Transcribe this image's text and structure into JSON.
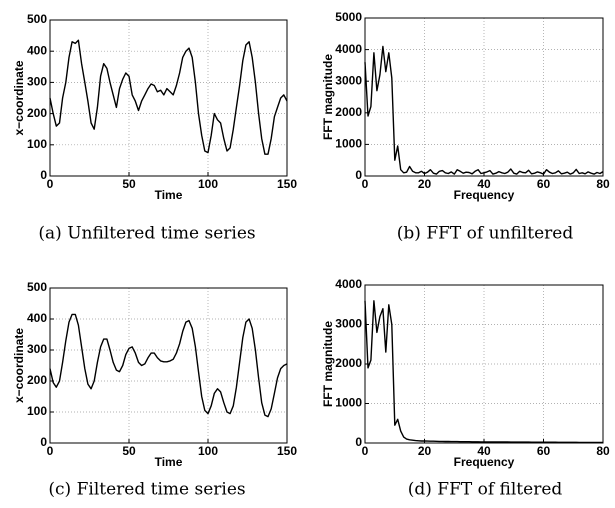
{
  "chart_data": [
    {
      "type": "line",
      "caption": "(a) Unfiltered time series",
      "xlabel": "Time",
      "ylabel": "x−coordinate",
      "xlim": [
        0,
        150
      ],
      "ylim": [
        0,
        500
      ],
      "xticks": [
        0,
        50,
        100,
        150
      ],
      "yticks": [
        0,
        100,
        200,
        300,
        400,
        500
      ],
      "grid": true,
      "series": [
        {
          "color": "#000000",
          "x": [
            0,
            2,
            4,
            6,
            8,
            10,
            12,
            14,
            16,
            18,
            20,
            22,
            24,
            26,
            28,
            30,
            32,
            34,
            36,
            38,
            40,
            42,
            44,
            46,
            48,
            50,
            52,
            54,
            56,
            58,
            60,
            62,
            64,
            66,
            68,
            70,
            72,
            74,
            76,
            78,
            80,
            82,
            84,
            86,
            88,
            90,
            92,
            94,
            96,
            98,
            100,
            102,
            104,
            106,
            108,
            110,
            112,
            114,
            116,
            118,
            120,
            122,
            124,
            126,
            128,
            130,
            132,
            134,
            136,
            138,
            140,
            142,
            144,
            146,
            148,
            150
          ],
          "values": [
            250,
            200,
            160,
            170,
            250,
            300,
            380,
            430,
            425,
            435,
            360,
            300,
            240,
            170,
            150,
            220,
            320,
            360,
            345,
            300,
            260,
            220,
            280,
            310,
            330,
            320,
            260,
            240,
            210,
            240,
            260,
            280,
            295,
            290,
            270,
            275,
            260,
            280,
            270,
            260,
            290,
            330,
            380,
            400,
            410,
            380,
            300,
            200,
            130,
            80,
            75,
            130,
            200,
            180,
            170,
            120,
            80,
            90,
            150,
            220,
            290,
            370,
            420,
            430,
            380,
            300,
            200,
            120,
            70,
            70,
            120,
            190,
            220,
            250,
            260,
            240
          ]
        }
      ]
    },
    {
      "type": "line",
      "caption": "(b) FFT of unfiltered",
      "xlabel": "Frequency",
      "ylabel": "FFT magnitude",
      "xlim": [
        0,
        80
      ],
      "ylim": [
        0,
        5000
      ],
      "xticks": [
        0,
        20,
        40,
        60,
        80
      ],
      "yticks": [
        0,
        1000,
        2000,
        3000,
        4000,
        5000
      ],
      "grid": true,
      "series": [
        {
          "color": "#000000",
          "x": [
            0,
            1,
            2,
            3,
            4,
            5,
            6,
            7,
            8,
            9,
            10,
            11,
            12,
            13,
            14,
            15,
            16,
            17,
            18,
            19,
            20,
            21,
            22,
            23,
            24,
            25,
            26,
            27,
            28,
            29,
            30,
            31,
            32,
            33,
            34,
            35,
            36,
            37,
            38,
            39,
            40,
            41,
            42,
            43,
            44,
            45,
            46,
            47,
            48,
            49,
            50,
            51,
            52,
            53,
            54,
            55,
            56,
            57,
            58,
            59,
            60,
            61,
            62,
            63,
            64,
            65,
            66,
            67,
            68,
            69,
            70,
            71,
            72,
            73,
            74,
            75,
            76,
            77,
            78,
            79,
            80
          ],
          "values": [
            3600,
            1900,
            2200,
            3900,
            2700,
            3200,
            4100,
            3300,
            3900,
            3100,
            500,
            950,
            200,
            100,
            120,
            300,
            150,
            100,
            100,
            150,
            80,
            120,
            200,
            90,
            60,
            150,
            170,
            100,
            80,
            130,
            60,
            200,
            150,
            90,
            120,
            110,
            70,
            150,
            200,
            80,
            100,
            130,
            170,
            60,
            90,
            140,
            100,
            80,
            120,
            220,
            90,
            60,
            150,
            110,
            100,
            180,
            70,
            90,
            130,
            100,
            60,
            200,
            120,
            80,
            100,
            160,
            70,
            90,
            120,
            60,
            100,
            210,
            80,
            100,
            70,
            130,
            90,
            60,
            110,
            80,
            140
          ]
        }
      ]
    },
    {
      "type": "line",
      "caption": "(c) Filtered time series",
      "xlabel": "Time",
      "ylabel": "x−coordinate",
      "xlim": [
        0,
        150
      ],
      "ylim": [
        0,
        500
      ],
      "xticks": [
        0,
        50,
        100,
        150
      ],
      "yticks": [
        0,
        100,
        200,
        300,
        400,
        500
      ],
      "grid": true,
      "series": [
        {
          "color": "#000000",
          "x": [
            0,
            2,
            4,
            6,
            8,
            10,
            12,
            14,
            16,
            18,
            20,
            22,
            24,
            26,
            28,
            30,
            32,
            34,
            36,
            38,
            40,
            42,
            44,
            46,
            48,
            50,
            52,
            54,
            56,
            58,
            60,
            62,
            64,
            66,
            68,
            70,
            72,
            74,
            76,
            78,
            80,
            82,
            84,
            86,
            88,
            90,
            92,
            94,
            96,
            98,
            100,
            102,
            104,
            106,
            108,
            110,
            112,
            114,
            116,
            118,
            120,
            122,
            124,
            126,
            128,
            130,
            132,
            134,
            136,
            138,
            140,
            142,
            144,
            146,
            148,
            150
          ],
          "values": [
            240,
            195,
            180,
            200,
            260,
            330,
            390,
            415,
            415,
            380,
            310,
            240,
            190,
            175,
            200,
            260,
            310,
            335,
            335,
            300,
            260,
            235,
            230,
            250,
            285,
            305,
            310,
            290,
            260,
            250,
            255,
            275,
            290,
            290,
            275,
            265,
            262,
            262,
            265,
            270,
            290,
            320,
            360,
            390,
            395,
            370,
            310,
            230,
            150,
            105,
            95,
            120,
            160,
            175,
            165,
            130,
            100,
            95,
            120,
            180,
            260,
            340,
            390,
            400,
            370,
            300,
            210,
            130,
            90,
            85,
            110,
            160,
            210,
            240,
            250,
            255
          ]
        }
      ]
    },
    {
      "type": "line",
      "caption": "(d) FFT of filtered",
      "xlabel": "Frequency",
      "ylabel": "FFT magnitude",
      "xlim": [
        0,
        80
      ],
      "ylim": [
        0,
        4000
      ],
      "xticks": [
        0,
        20,
        40,
        60,
        80
      ],
      "yticks": [
        0,
        1000,
        2000,
        3000,
        4000
      ],
      "grid": true,
      "series": [
        {
          "color": "#000000",
          "x": [
            0,
            1,
            2,
            3,
            4,
            5,
            6,
            7,
            8,
            9,
            10,
            11,
            12,
            13,
            14,
            15,
            16,
            17,
            18,
            19,
            20,
            21,
            22,
            23,
            24,
            25,
            26,
            27,
            28,
            29,
            30,
            31,
            32,
            33,
            34,
            35,
            36,
            37,
            38,
            39,
            40,
            41,
            42,
            43,
            44,
            45,
            46,
            47,
            48,
            49,
            50,
            51,
            52,
            53,
            54,
            55,
            56,
            57,
            58,
            59,
            60,
            61,
            62,
            63,
            64,
            65,
            66,
            67,
            68,
            69,
            70,
            71,
            72,
            73,
            74,
            75,
            76,
            77,
            78,
            79,
            80
          ],
          "values": [
            3600,
            1900,
            2100,
            3600,
            2800,
            3200,
            3400,
            2300,
            3500,
            3000,
            450,
            600,
            300,
            150,
            100,
            80,
            70,
            60,
            55,
            50,
            50,
            48,
            45,
            45,
            42,
            40,
            40,
            38,
            38,
            36,
            35,
            35,
            34,
            33,
            32,
            32,
            31,
            30,
            30,
            29,
            28,
            28,
            27,
            27,
            26,
            26,
            25,
            25,
            25,
            24,
            24,
            23,
            23,
            22,
            22,
            22,
            21,
            21,
            21,
            20,
            20,
            20,
            19,
            19,
            19,
            18,
            18,
            18,
            18,
            17,
            17,
            17,
            16,
            16,
            16,
            16,
            15,
            15,
            15,
            15,
            14
          ]
        }
      ]
    }
  ]
}
